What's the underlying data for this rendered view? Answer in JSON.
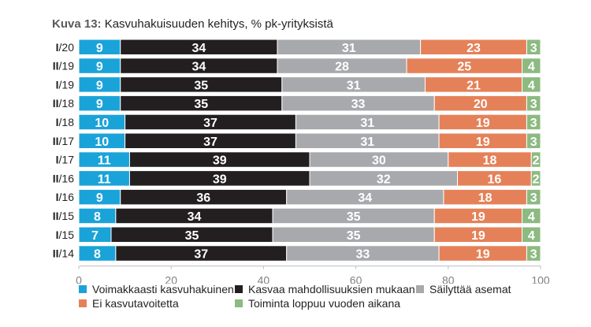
{
  "chart_data": {
    "type": "bar",
    "orientation": "horizontal",
    "stacked": true,
    "title_prefix": "Kuva 13:",
    "title": "Kasvuhakuisuuden kehitys, % pk-yrityksistä",
    "categories": [
      "I/20",
      "II/19",
      "I/19",
      "II/18",
      "I/18",
      "II/17",
      "I/17",
      "II/16",
      "I/16",
      "II/15",
      "I/15",
      "II/14"
    ],
    "category_parts": [
      [
        "I",
        "/20"
      ],
      [
        "II",
        "/19"
      ],
      [
        "I",
        "/19"
      ],
      [
        "II",
        "/18"
      ],
      [
        "I",
        "/18"
      ],
      [
        "II",
        "/17"
      ],
      [
        "I",
        "/17"
      ],
      [
        "II",
        "/16"
      ],
      [
        "I",
        "/16"
      ],
      [
        "II",
        "/15"
      ],
      [
        "I",
        "/15"
      ],
      [
        "II",
        "/14"
      ]
    ],
    "series": [
      {
        "name": "Voimakkaasti kasvuhakuinen",
        "color": "#1aa3d9",
        "values": [
          9,
          9,
          9,
          9,
          10,
          10,
          11,
          11,
          9,
          8,
          7,
          8
        ]
      },
      {
        "name": "Kasvaa mahdollisuuksien mukaan",
        "color": "#231f20",
        "values": [
          34,
          34,
          35,
          35,
          37,
          37,
          39,
          39,
          36,
          34,
          35,
          37
        ]
      },
      {
        "name": "Säilyttää asemat",
        "color": "#a7a9ac",
        "values": [
          31,
          28,
          31,
          33,
          31,
          31,
          30,
          32,
          34,
          35,
          35,
          33
        ]
      },
      {
        "name": "Ei kasvutavoitetta",
        "color": "#e58158",
        "values": [
          23,
          25,
          21,
          20,
          19,
          19,
          18,
          16,
          18,
          19,
          19,
          19
        ]
      },
      {
        "name": "Toiminta loppuu vuoden aikana",
        "color": "#8cba81",
        "values": [
          3,
          4,
          4,
          3,
          3,
          3,
          2,
          2,
          3,
          4,
          4,
          3
        ]
      }
    ],
    "xlim": [
      0,
      100
    ],
    "xticks": [
      "0",
      "20",
      "40",
      "60",
      "80",
      "100"
    ],
    "grid": false,
    "legend_position": "bottom"
  },
  "legend": {
    "item1": "Voimakkaasti kasvuhakuinen",
    "item2": "Kasvaa mahdollisuuksien mukaan",
    "item3": "Säilyttää asemat",
    "item4": "Ei kasvutavoitetta",
    "item5": "Toiminta loppuu vuoden aikana"
  },
  "colors": {
    "blue": "#1aa3d9",
    "black": "#231f20",
    "gray": "#a7a9ac",
    "orange": "#e58158",
    "green": "#8cba81",
    "separator": "#ffffff"
  }
}
